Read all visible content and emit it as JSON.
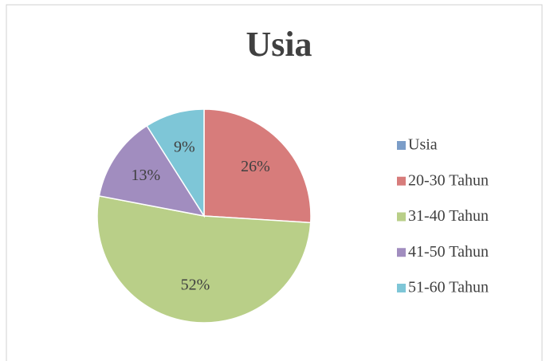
{
  "chart_data": {
    "type": "pie",
    "title": "Usia",
    "categories": [
      "Usia",
      "20-30 Tahun",
      "31-40 Tahun",
      "41-50 Tahun",
      "51-60 Tahun"
    ],
    "values": [
      0,
      26,
      52,
      13,
      9
    ],
    "value_labels": [
      null,
      "26%",
      "52%",
      "13%",
      "9%"
    ],
    "colors": [
      "#7b9dc8",
      "#d77c7b",
      "#b9cf88",
      "#a18dbf",
      "#7ec6d7"
    ],
    "legend": "right"
  }
}
